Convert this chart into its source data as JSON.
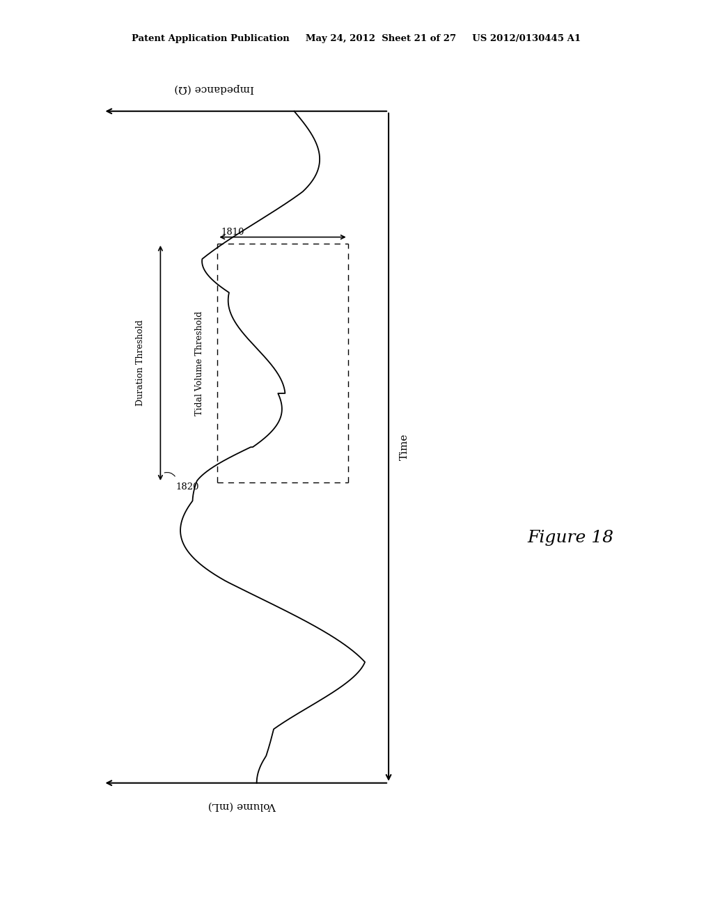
{
  "background_color": "#ffffff",
  "header_text": "Patent Application Publication     May 24, 2012  Sheet 21 of 27     US 2012/0130445 A1",
  "figure_label": "Figure 18",
  "volume_axis_label": "Volume (mL)",
  "impedance_axis_label": "Impedance (Ω)",
  "time_axis_label": "Time",
  "label_1820": "1820",
  "label_1810": "1810",
  "label_duration": "Duration Threshold",
  "label_tidal": "Tidal Volume Threshold"
}
